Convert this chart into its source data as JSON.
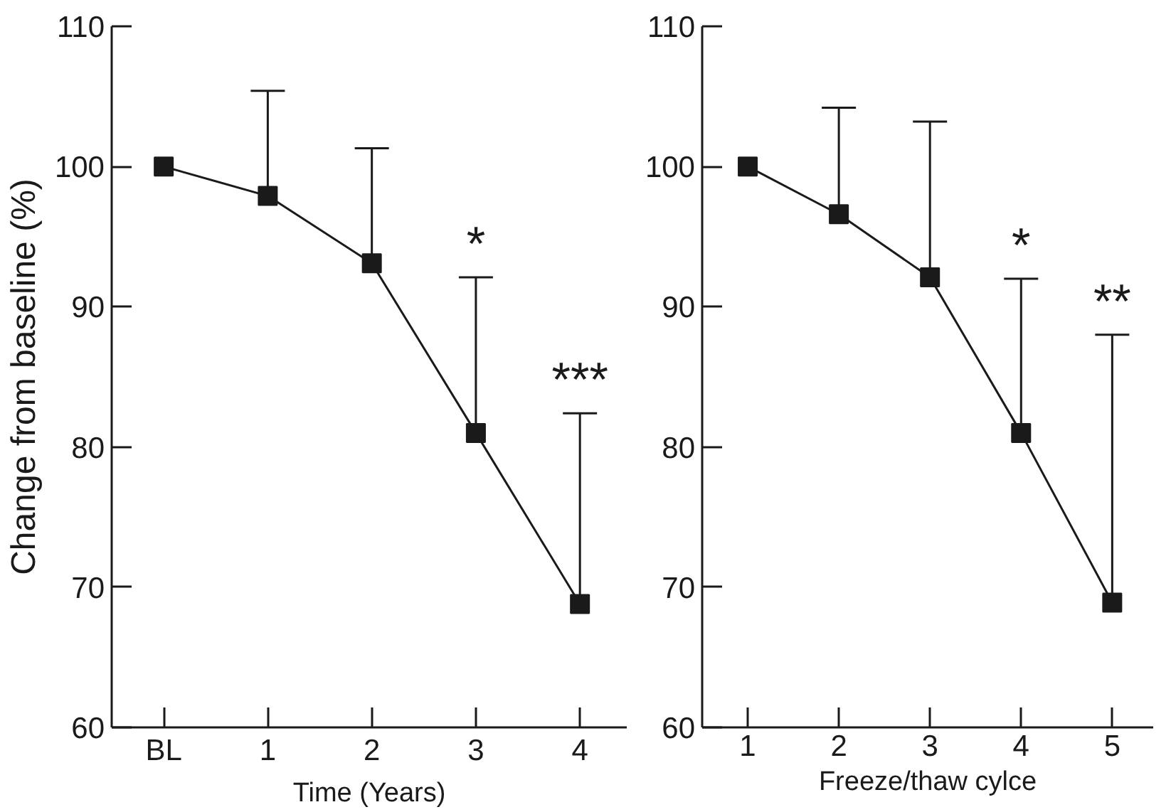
{
  "chart_data": [
    {
      "type": "line",
      "xlabel": "Time (Years)",
      "ylabel": "Change from baseline (%)",
      "categories": [
        "BL",
        "1",
        "2",
        "3",
        "4"
      ],
      "series": [
        {
          "color": "#1a1a1a",
          "values": [
            100,
            97.9,
            93.1,
            81.0,
            68.8
          ],
          "errors": [
            null,
            [
              97.9,
              105.4
            ],
            [
              93.1,
              101.3
            ],
            [
              81.0,
              92.1
            ],
            [
              68.8,
              82.4
            ]
          ]
        }
      ],
      "ylim": [
        60,
        110
      ],
      "yticks": [
        60,
        70,
        80,
        90,
        100,
        110
      ],
      "marker": "square",
      "line_style": "solid",
      "annotations": [
        "*",
        "***"
      ]
    },
    {
      "type": "line",
      "xlabel": "Freeze/thaw cylce",
      "categories": [
        "1",
        "2",
        "3",
        "4",
        "5"
      ],
      "series": [
        {
          "color": "#1a1a1a",
          "values": [
            100,
            96.6,
            92.1,
            81.0,
            68.9
          ],
          "errors": [
            null,
            [
              96.6,
              104.2
            ],
            [
              92.1,
              103.2
            ],
            [
              81.0,
              92.0
            ],
            [
              68.9,
              88.0
            ]
          ]
        }
      ],
      "ylim": [
        60,
        110
      ],
      "yticks": [
        60,
        70,
        80,
        90,
        100,
        110
      ],
      "marker": "square",
      "line_style": "solid",
      "annotations": [
        "*",
        "**"
      ]
    }
  ]
}
